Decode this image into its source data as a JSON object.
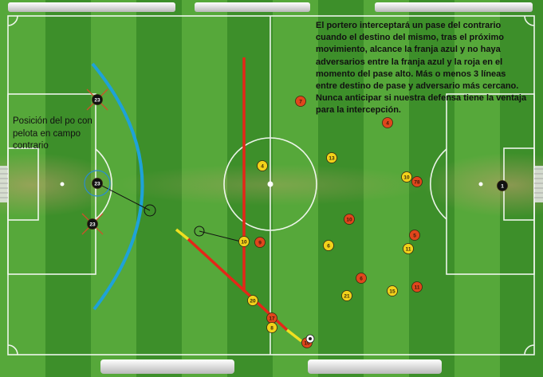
{
  "info_text": "El portero interceptará un pase del contrario cuando el destino del mismo, tras el próximo movimiento, alcance la franja azul y no haya adversarios entre la franja azul y la roja en el momento del pase alto. Más o menos 3 líneas entre destino de pase y adversario más cercano. Nunca anticipar si nuestra defensa tiene la ventaja para la intercepción.",
  "possession_text": "Posición del po con pelota en campo contrario",
  "colors": {
    "grass_dark": "#3d8f2a",
    "grass_light": "#56a83a",
    "lines": "#ffffff",
    "team_black": "#111111",
    "team_orange": "#e0461c",
    "team_yellow": "#f2d21a",
    "goalkeeper_zone_line": "#1ea2d8",
    "defensive_line": "#e42718",
    "pass_line_yellow": "#f0e020",
    "marker_cross": "#d0502a"
  },
  "players": {
    "black": [
      {
        "number": "23",
        "crossed": true
      },
      {
        "number": "23",
        "crossed": false,
        "highlighted": true
      },
      {
        "number": "23",
        "crossed": true
      },
      {
        "number": "1",
        "crossed": false
      }
    ],
    "orange": [
      "7",
      "4",
      "78",
      "10",
      "5",
      "9",
      "6",
      "11",
      "17",
      "10"
    ],
    "yellow": [
      "13",
      "4",
      "10",
      "6",
      "11",
      "21",
      "15",
      "8",
      "20",
      "10"
    ]
  },
  "ball": {
    "visible": true
  },
  "top_stands": [
    "stand-left",
    "stand-center",
    "stand-right"
  ],
  "bottom_stands": [
    "stand-left",
    "stand-right"
  ]
}
